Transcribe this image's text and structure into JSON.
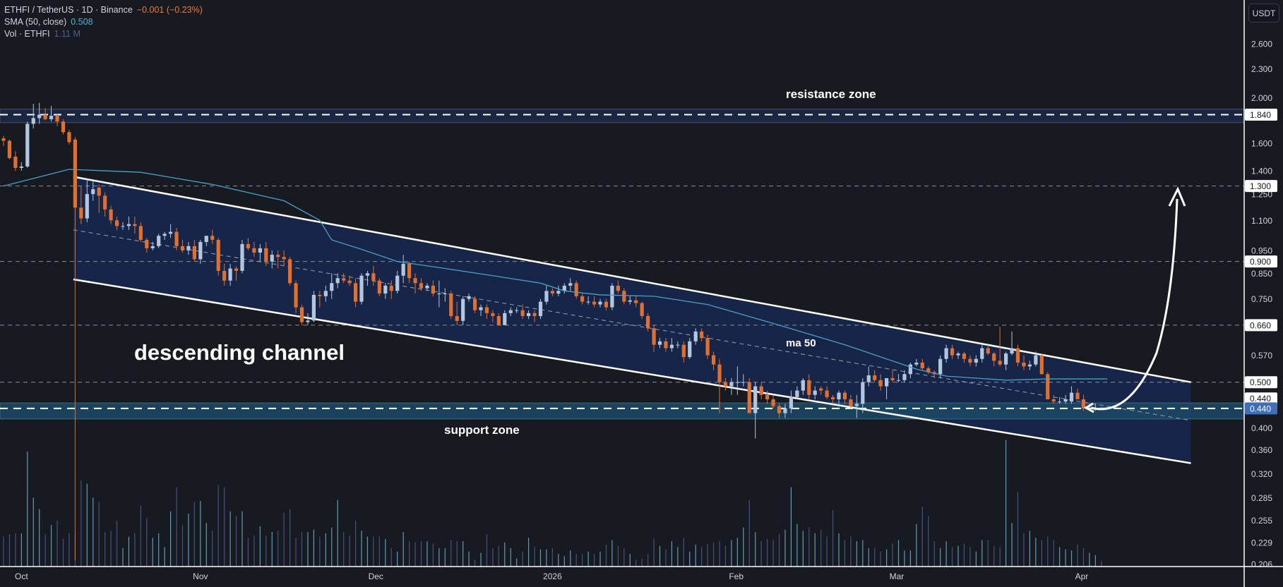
{
  "legend": {
    "symbol_line": "ETHFI / TetherUS · 1D · Binance",
    "change": "−0.001 (−0.23%)",
    "sma_label": "SMA (50, close)",
    "sma_value": "0.508",
    "vol_label": "Vol · ETHFI",
    "vol_value": "1.11 M"
  },
  "currency_button": "USDT",
  "annotations": {
    "resistance": "resistance zone",
    "channel": "descending channel",
    "support": "support zone",
    "ma": "ma 50"
  },
  "colors": {
    "up": "#b2c6df",
    "down": "#e0702f",
    "sma": "#4a9fc8",
    "channel_fill": "#172548",
    "support_band": "#1b4a66",
    "resistance_band": "#1b2742",
    "current_price": "#3f6fb8"
  },
  "chart_data": {
    "type": "candlestick",
    "title": "ETHFI / TetherUS · 1D · Binance",
    "ylabel": "USDT",
    "y_scale": "log",
    "ylim": [
      0.206,
      2.75
    ],
    "grid": false,
    "x_axis": {
      "labels": [
        {
          "label": "Oct",
          "index": 3
        },
        {
          "label": "Nov",
          "index": 33
        },
        {
          "label": "Dec",
          "index": 62.4
        },
        {
          "label": "2026",
          "index": 92
        },
        {
          "label": "Feb",
          "index": 122.8
        },
        {
          "label": "Mar",
          "index": 149.7
        },
        {
          "label": "Apr",
          "index": 180.7
        }
      ]
    },
    "price_axis": {
      "ticks": [
        "2.600",
        "2.300",
        "2.000",
        "1.600",
        "1.400",
        "1.250",
        "1.100",
        "0.950",
        "0.850",
        "0.750",
        "0.570",
        "0.400",
        "0.360",
        "0.320",
        "0.285",
        "0.255",
        "0.229",
        "0.206"
      ],
      "price_labels": [
        {
          "text": "1.840",
          "value": 1.84,
          "style": "white"
        },
        {
          "text": "1.300",
          "value": 1.3,
          "style": "white"
        },
        {
          "text": "0.900",
          "value": 0.9,
          "style": "white"
        },
        {
          "text": "0.660",
          "value": 0.66,
          "style": "white"
        },
        {
          "text": "0.500",
          "value": 0.5,
          "style": "white"
        },
        {
          "text": "0.440",
          "value": 0.462,
          "style": "white"
        },
        {
          "text": "0.440",
          "value": 0.44,
          "style": "current"
        }
      ]
    },
    "ohlc": [
      [
        1.64,
        1.66,
        1.58,
        1.62
      ],
      [
        1.62,
        1.63,
        1.48,
        1.49
      ],
      [
        1.5,
        1.54,
        1.4,
        1.42
      ],
      [
        1.42,
        1.46,
        1.4,
        1.43
      ],
      [
        1.43,
        1.78,
        1.42,
        1.76
      ],
      [
        1.76,
        1.94,
        1.72,
        1.81
      ],
      [
        1.81,
        1.95,
        1.76,
        1.84
      ],
      [
        1.84,
        1.9,
        1.79,
        1.8
      ],
      [
        1.8,
        1.92,
        1.78,
        1.83
      ],
      [
        1.83,
        1.85,
        1.74,
        1.78
      ],
      [
        1.78,
        1.8,
        1.67,
        1.69
      ],
      [
        1.69,
        1.71,
        1.59,
        1.61
      ],
      [
        1.63,
        1.65,
        0.21,
        1.17
      ],
      [
        1.17,
        1.3,
        1.08,
        1.11
      ],
      [
        1.11,
        1.35,
        1.09,
        1.25
      ],
      [
        1.25,
        1.33,
        1.21,
        1.28
      ],
      [
        1.29,
        1.31,
        1.14,
        1.24
      ],
      [
        1.24,
        1.26,
        1.12,
        1.16
      ],
      [
        1.16,
        1.18,
        1.08,
        1.1
      ],
      [
        1.1,
        1.12,
        1.05,
        1.07
      ],
      [
        1.07,
        1.09,
        1.05,
        1.07
      ],
      [
        1.07,
        1.12,
        1.05,
        1.08
      ],
      [
        1.08,
        1.12,
        1.03,
        1.07
      ],
      [
        1.07,
        1.09,
        0.99,
        1.0
      ],
      [
        1.0,
        1.01,
        0.94,
        0.96
      ],
      [
        0.96,
        0.99,
        0.95,
        0.97
      ],
      [
        0.97,
        1.03,
        0.96,
        1.02
      ],
      [
        1.02,
        1.04,
        1.0,
        1.03
      ],
      [
        1.03,
        1.08,
        1.01,
        1.04
      ],
      [
        1.04,
        1.06,
        0.95,
        0.97
      ],
      [
        0.97,
        1.0,
        0.94,
        0.95
      ],
      [
        0.95,
        0.99,
        0.93,
        0.97
      ],
      [
        0.97,
        1.0,
        0.9,
        0.91
      ],
      [
        0.91,
        1.0,
        0.89,
        0.99
      ],
      [
        0.99,
        1.02,
        0.97,
        1.02
      ],
      [
        1.02,
        1.05,
        0.98,
        1.0
      ],
      [
        1.0,
        1.01,
        0.84,
        0.86
      ],
      [
        0.86,
        0.89,
        0.8,
        0.82
      ],
      [
        0.82,
        0.89,
        0.8,
        0.87
      ],
      [
        0.87,
        0.88,
        0.82,
        0.86
      ],
      [
        0.86,
        1.0,
        0.85,
        0.98
      ],
      [
        0.98,
        1.01,
        0.95,
        0.96
      ],
      [
        0.96,
        0.99,
        0.92,
        0.94
      ],
      [
        0.94,
        0.98,
        0.9,
        0.96
      ],
      [
        0.96,
        0.99,
        0.88,
        0.9
      ],
      [
        0.9,
        0.95,
        0.87,
        0.93
      ],
      [
        0.93,
        0.95,
        0.87,
        0.92
      ],
      [
        0.92,
        0.95,
        0.88,
        0.91
      ],
      [
        0.91,
        0.92,
        0.8,
        0.81
      ],
      [
        0.81,
        0.82,
        0.7,
        0.72
      ],
      [
        0.72,
        0.73,
        0.66,
        0.67
      ],
      [
        0.67,
        0.7,
        0.66,
        0.675
      ],
      [
        0.675,
        0.78,
        0.67,
        0.765
      ],
      [
        0.765,
        0.78,
        0.72,
        0.76
      ],
      [
        0.76,
        0.8,
        0.74,
        0.78
      ],
      [
        0.78,
        0.85,
        0.75,
        0.81
      ],
      [
        0.81,
        0.85,
        0.79,
        0.83
      ],
      [
        0.83,
        0.85,
        0.81,
        0.82
      ],
      [
        0.82,
        0.84,
        0.8,
        0.81
      ],
      [
        0.81,
        0.83,
        0.72,
        0.74
      ],
      [
        0.74,
        0.85,
        0.73,
        0.84
      ],
      [
        0.84,
        0.86,
        0.8,
        0.85
      ],
      [
        0.85,
        0.88,
        0.8,
        0.82
      ],
      [
        0.82,
        0.83,
        0.76,
        0.77
      ],
      [
        0.77,
        0.81,
        0.75,
        0.8
      ],
      [
        0.8,
        0.82,
        0.75,
        0.78
      ],
      [
        0.78,
        0.86,
        0.77,
        0.84
      ],
      [
        0.84,
        0.93,
        0.81,
        0.89
      ],
      [
        0.89,
        0.9,
        0.81,
        0.83
      ],
      [
        0.83,
        0.85,
        0.77,
        0.81
      ],
      [
        0.81,
        0.83,
        0.78,
        0.79
      ],
      [
        0.79,
        0.81,
        0.78,
        0.8
      ],
      [
        0.8,
        0.82,
        0.76,
        0.77
      ],
      [
        0.77,
        0.82,
        0.72,
        0.77
      ],
      [
        0.77,
        0.79,
        0.74,
        0.77
      ],
      [
        0.77,
        0.78,
        0.68,
        0.69
      ],
      [
        0.69,
        0.74,
        0.66,
        0.674
      ],
      [
        0.674,
        0.76,
        0.66,
        0.75
      ],
      [
        0.75,
        0.77,
        0.74,
        0.76
      ],
      [
        0.75,
        0.76,
        0.7,
        0.71
      ],
      [
        0.71,
        0.73,
        0.69,
        0.72
      ],
      [
        0.72,
        0.73,
        0.68,
        0.7
      ],
      [
        0.7,
        0.71,
        0.67,
        0.69
      ],
      [
        0.69,
        0.7,
        0.66,
        0.66
      ],
      [
        0.66,
        0.71,
        0.66,
        0.7
      ],
      [
        0.7,
        0.72,
        0.69,
        0.71
      ],
      [
        0.71,
        0.72,
        0.7,
        0.71
      ],
      [
        0.71,
        0.73,
        0.68,
        0.69
      ],
      [
        0.69,
        0.71,
        0.68,
        0.7
      ],
      [
        0.7,
        0.71,
        0.67,
        0.69
      ],
      [
        0.69,
        0.75,
        0.68,
        0.74
      ],
      [
        0.74,
        0.8,
        0.73,
        0.78
      ],
      [
        0.78,
        0.79,
        0.76,
        0.77
      ],
      [
        0.77,
        0.8,
        0.76,
        0.78
      ],
      [
        0.78,
        0.81,
        0.77,
        0.8
      ],
      [
        0.8,
        0.83,
        0.78,
        0.81
      ],
      [
        0.81,
        0.82,
        0.75,
        0.76
      ],
      [
        0.76,
        0.77,
        0.73,
        0.74
      ],
      [
        0.74,
        0.76,
        0.73,
        0.74
      ],
      [
        0.74,
        0.76,
        0.72,
        0.73
      ],
      [
        0.73,
        0.75,
        0.72,
        0.74
      ],
      [
        0.74,
        0.75,
        0.71,
        0.72
      ],
      [
        0.72,
        0.81,
        0.71,
        0.8
      ],
      [
        0.8,
        0.82,
        0.77,
        0.78
      ],
      [
        0.78,
        0.79,
        0.73,
        0.74
      ],
      [
        0.74,
        0.76,
        0.73,
        0.745
      ],
      [
        0.745,
        0.76,
        0.72,
        0.735
      ],
      [
        0.735,
        0.74,
        0.68,
        0.69
      ],
      [
        0.69,
        0.7,
        0.64,
        0.65
      ],
      [
        0.65,
        0.66,
        0.58,
        0.6
      ],
      [
        0.6,
        0.62,
        0.59,
        0.61
      ],
      [
        0.61,
        0.62,
        0.58,
        0.59
      ],
      [
        0.59,
        0.62,
        0.58,
        0.6
      ],
      [
        0.6,
        0.61,
        0.59,
        0.6
      ],
      [
        0.6,
        0.61,
        0.55,
        0.565
      ],
      [
        0.565,
        0.62,
        0.56,
        0.61
      ],
      [
        0.61,
        0.65,
        0.6,
        0.64
      ],
      [
        0.64,
        0.65,
        0.61,
        0.62
      ],
      [
        0.62,
        0.63,
        0.56,
        0.57
      ],
      [
        0.57,
        0.58,
        0.53,
        0.545
      ],
      [
        0.545,
        0.56,
        0.43,
        0.5
      ],
      [
        0.5,
        0.51,
        0.48,
        0.49
      ],
      [
        0.49,
        0.51,
        0.47,
        0.5
      ],
      [
        0.5,
        0.54,
        0.47,
        0.5
      ],
      [
        0.5,
        0.52,
        0.49,
        0.5
      ],
      [
        0.5,
        0.51,
        0.43,
        0.43
      ],
      [
        0.43,
        0.5,
        0.38,
        0.49
      ],
      [
        0.49,
        0.5,
        0.46,
        0.47
      ],
      [
        0.47,
        0.48,
        0.45,
        0.46
      ],
      [
        0.46,
        0.47,
        0.44,
        0.445
      ],
      [
        0.445,
        0.45,
        0.42,
        0.43
      ],
      [
        0.43,
        0.45,
        0.42,
        0.44
      ],
      [
        0.44,
        0.48,
        0.43,
        0.465
      ],
      [
        0.465,
        0.49,
        0.46,
        0.48
      ],
      [
        0.48,
        0.51,
        0.47,
        0.505
      ],
      [
        0.505,
        0.52,
        0.46,
        0.47
      ],
      [
        0.47,
        0.49,
        0.46,
        0.48
      ],
      [
        0.485,
        0.49,
        0.47,
        0.48
      ],
      [
        0.48,
        0.49,
        0.46,
        0.465
      ],
      [
        0.465,
        0.47,
        0.45,
        0.46
      ],
      [
        0.46,
        0.48,
        0.45,
        0.475
      ],
      [
        0.475,
        0.48,
        0.45,
        0.46
      ],
      [
        0.46,
        0.47,
        0.44,
        0.445
      ],
      [
        0.445,
        0.47,
        0.42,
        0.45
      ],
      [
        0.45,
        0.51,
        0.43,
        0.5
      ],
      [
        0.5,
        0.54,
        0.49,
        0.517
      ],
      [
        0.517,
        0.53,
        0.5,
        0.505
      ],
      [
        0.505,
        0.52,
        0.48,
        0.49
      ],
      [
        0.49,
        0.51,
        0.46,
        0.51
      ],
      [
        0.51,
        0.53,
        0.5,
        0.505
      ],
      [
        0.505,
        0.52,
        0.5,
        0.505
      ],
      [
        0.505,
        0.53,
        0.5,
        0.52
      ],
      [
        0.52,
        0.55,
        0.51,
        0.545
      ],
      [
        0.545,
        0.56,
        0.54,
        0.55
      ],
      [
        0.55,
        0.56,
        0.53,
        0.535
      ],
      [
        0.535,
        0.54,
        0.52,
        0.525
      ],
      [
        0.525,
        0.53,
        0.51,
        0.52
      ],
      [
        0.52,
        0.57,
        0.51,
        0.56
      ],
      [
        0.56,
        0.6,
        0.55,
        0.59
      ],
      [
        0.59,
        0.6,
        0.56,
        0.57
      ],
      [
        0.57,
        0.58,
        0.56,
        0.575
      ],
      [
        0.575,
        0.58,
        0.55,
        0.56
      ],
      [
        0.56,
        0.57,
        0.54,
        0.55
      ],
      [
        0.55,
        0.57,
        0.54,
        0.56
      ],
      [
        0.56,
        0.6,
        0.55,
        0.59
      ],
      [
        0.59,
        0.6,
        0.57,
        0.575
      ],
      [
        0.575,
        0.58,
        0.54,
        0.555
      ],
      [
        0.555,
        0.655,
        0.54,
        0.545
      ],
      [
        0.545,
        0.58,
        0.53,
        0.575
      ],
      [
        0.575,
        0.64,
        0.57,
        0.59
      ],
      [
        0.59,
        0.6,
        0.54,
        0.55
      ],
      [
        0.55,
        0.57,
        0.53,
        0.54
      ],
      [
        0.54,
        0.555,
        0.53,
        0.545
      ],
      [
        0.545,
        0.58,
        0.54,
        0.57
      ],
      [
        0.57,
        0.575,
        0.52,
        0.52
      ],
      [
        0.52,
        0.525,
        0.46,
        0.46
      ],
      [
        0.46,
        0.47,
        0.45,
        0.455
      ],
      [
        0.455,
        0.465,
        0.45,
        0.455
      ],
      [
        0.455,
        0.47,
        0.45,
        0.46
      ],
      [
        0.455,
        0.49,
        0.45,
        0.475
      ],
      [
        0.475,
        0.485,
        0.46,
        0.46
      ],
      [
        0.46,
        0.47,
        0.435,
        0.44
      ],
      [
        0.44,
        0.45,
        0.435,
        0.44
      ],
      [
        0.44,
        0.45,
        0.435,
        0.441
      ],
      [
        0.441,
        0.443,
        0.438,
        0.44
      ]
    ],
    "volume": [
      2.6,
      2.8,
      2.9,
      2.9,
      10,
      6,
      5,
      2.8,
      3.6,
      4,
      2.4,
      2.9,
      2.8,
      7.5,
      7.2,
      6,
      5.6,
      3,
      3.1,
      4,
      1.6,
      2.6,
      2.9,
      5.3,
      4.2,
      2.5,
      2.9,
      1.7,
      4.8,
      6.9,
      3.6,
      4.6,
      5.6,
      5.7,
      3.8,
      3.1,
      7.1,
      6.9,
      4.8,
      4.4,
      4.8,
      2.5,
      2.7,
      3.5,
      2.7,
      3,
      3.1,
      4.7,
      5,
      2.5,
      3,
      3,
      3.2,
      2.6,
      2.9,
      3.4,
      5.8,
      3,
      2.7,
      4,
      3.1,
      2.6,
      2.6,
      2.6,
      2.4,
      1.6,
      1.3,
      3,
      2.2,
      2.1,
      2.2,
      2.2,
      2,
      1.6,
      1.6,
      2.3,
      2.2,
      2.2,
      1.3,
      0.6,
      1.2,
      2.8,
      1.6,
      1.8,
      2.1,
      1.6,
      0.7,
      1.3,
      2.5,
      1.7,
      1.5,
      1.5,
      1.6,
      1.1,
      0.9,
      1.4,
      1.1,
      1.1,
      1.3,
      1.1,
      1.3,
      1.9,
      2.3,
      1.8,
      1.6,
      1.1,
      0.6,
      0.7,
      1.1,
      2.4,
      1.8,
      1.5,
      2.2,
      1.7,
      2.5,
      1.3,
      1.9,
      1.7,
      2,
      2.1,
      2.2,
      1.8,
      2.3,
      2.5,
      3.4,
      5.8,
      3,
      2.2,
      2.4,
      2.3,
      2.8,
      3.2,
      6.9,
      3.7,
      3.1,
      3.4,
      2.9,
      3.2,
      2.6,
      4.9,
      2.9,
      2.3,
      2.6,
      2.2,
      2.3,
      1.6,
      1.6,
      1.3,
      1.5,
      2,
      2.3,
      1.4,
      1.4,
      3.7,
      5.2,
      4.4,
      2.2,
      1.6,
      2.2,
      1.7,
      1.8,
      2,
      1.7,
      1.3,
      2.3,
      2.3,
      1.8,
      1.7,
      11,
      3.8,
      6.5,
      2.9,
      3.1,
      2.5,
      2.3,
      2.6,
      2.3,
      1.7,
      1.5,
      1.4,
      1.9,
      1.6,
      1.2,
      1.0,
      0.5
    ],
    "sma50": [
      [
        0,
        1.3
      ],
      [
        11,
        1.41
      ],
      [
        23,
        1.39
      ],
      [
        35,
        1.31
      ],
      [
        47,
        1.21
      ],
      [
        53,
        1.1
      ],
      [
        55,
        1.0
      ],
      [
        60,
        0.955
      ],
      [
        66,
        0.9
      ],
      [
        74,
        0.87
      ],
      [
        82,
        0.84
      ],
      [
        90,
        0.81
      ],
      [
        94,
        0.78
      ],
      [
        100,
        0.765
      ],
      [
        109,
        0.76
      ],
      [
        118,
        0.73
      ],
      [
        130,
        0.66
      ],
      [
        141,
        0.6
      ],
      [
        153,
        0.533
      ],
      [
        158,
        0.515
      ],
      [
        168,
        0.505
      ],
      [
        175,
        0.508
      ],
      [
        185,
        0.508
      ]
    ],
    "drawings": {
      "channel_upper": [
        [
          11.7,
          1.36
        ],
        [
          199,
          0.5
        ]
      ],
      "channel_lower": [
        [
          11.7,
          0.825
        ],
        [
          199,
          0.337
        ]
      ],
      "channel_mid": [
        [
          11.7,
          1.05
        ],
        [
          199,
          0.415
        ]
      ],
      "resistance_zone": {
        "low": 1.77,
        "high": 1.89,
        "line": 1.84
      },
      "support_zone": {
        "low": 0.418,
        "high": 0.452,
        "line": 0.44
      },
      "horizontal_levels": [
        1.3,
        0.9,
        0.66,
        0.5
      ]
    }
  }
}
